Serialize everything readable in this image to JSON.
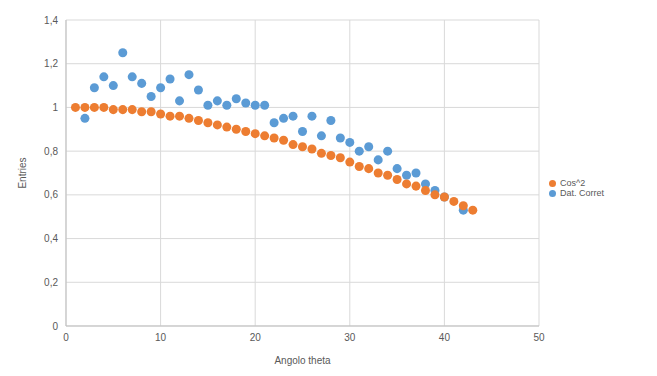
{
  "chart_data": {
    "type": "scatter",
    "x_label": "Angolo theta",
    "y_label": "Entries",
    "xlim": [
      0,
      50
    ],
    "xticks": [
      0,
      10,
      20,
      30,
      40,
      50
    ],
    "ylim": [
      0,
      1.4
    ],
    "yticks": [
      0,
      {
        "value": 0.2,
        "label": "0,2"
      },
      {
        "value": 0.4,
        "label": "0,4"
      },
      {
        "value": 0.6,
        "label": "0,6"
      },
      {
        "value": 0.8,
        "label": "0,8"
      },
      1,
      {
        "value": 1.2,
        "label": "1,2"
      },
      {
        "value": 1.4,
        "label": "1,4"
      }
    ],
    "grid": true,
    "legend": "right",
    "series": [
      {
        "name": "Dat. Corret",
        "color": "#5b9bd5",
        "marker": "circle",
        "x": [
          2,
          3,
          4,
          5,
          6,
          7,
          8,
          9,
          10,
          11,
          12,
          13,
          14,
          15,
          16,
          17,
          18,
          19,
          20,
          21,
          22,
          23,
          24,
          25,
          26,
          27,
          28,
          29,
          30,
          31,
          32,
          33,
          34,
          35,
          36,
          37,
          38,
          39,
          40,
          42
        ],
        "values": [
          0.95,
          1.09,
          1.14,
          1.1,
          1.25,
          1.14,
          1.11,
          1.05,
          1.09,
          1.13,
          1.03,
          1.15,
          1.08,
          1.01,
          1.03,
          1.01,
          1.04,
          1.02,
          1.01,
          1.01,
          0.93,
          0.95,
          0.96,
          0.89,
          0.96,
          0.87,
          0.94,
          0.86,
          0.84,
          0.8,
          0.82,
          0.76,
          0.8,
          0.72,
          0.69,
          0.7,
          0.65,
          0.62,
          0.59,
          0.53
        ]
      },
      {
        "name": "Cos^2",
        "color": "#ed7d31",
        "marker": "circle",
        "x": [
          1,
          2,
          3,
          4,
          5,
          6,
          7,
          8,
          9,
          10,
          11,
          12,
          13,
          14,
          15,
          16,
          17,
          18,
          19,
          20,
          21,
          22,
          23,
          24,
          25,
          26,
          27,
          28,
          29,
          30,
          31,
          32,
          33,
          34,
          35,
          36,
          37,
          38,
          39,
          40,
          41,
          42,
          43
        ],
        "values": [
          1.0,
          1.0,
          1.0,
          1.0,
          0.99,
          0.99,
          0.99,
          0.98,
          0.98,
          0.97,
          0.96,
          0.96,
          0.95,
          0.94,
          0.93,
          0.92,
          0.91,
          0.9,
          0.89,
          0.88,
          0.87,
          0.86,
          0.85,
          0.83,
          0.82,
          0.81,
          0.79,
          0.78,
          0.77,
          0.75,
          0.73,
          0.72,
          0.7,
          0.69,
          0.67,
          0.65,
          0.64,
          0.62,
          0.6,
          0.59,
          0.57,
          0.55,
          0.53
        ]
      }
    ]
  }
}
